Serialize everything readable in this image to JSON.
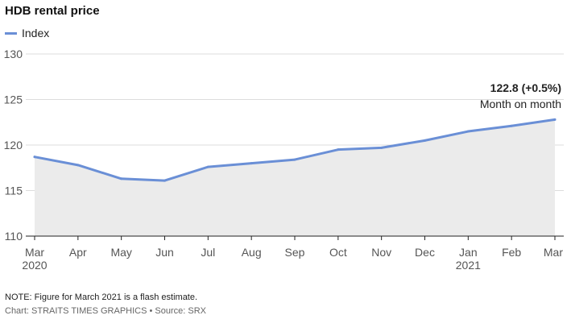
{
  "title": "HDB rental price",
  "legend": {
    "label": "Index"
  },
  "annotation": {
    "value": "122.8 (+0.5%)",
    "text": "Month on month"
  },
  "note": "NOTE: Figure for March 2021 is a flash estimate.",
  "credit": "Chart: STRAITS TIMES GRAPHICS • Source: SRX",
  "colors": {
    "line": "#6a8fd6",
    "area": "#ebebeb",
    "grid": "#dcdcdc",
    "axis": "#222222"
  },
  "chart_data": {
    "type": "area",
    "x": [
      "Mar",
      "Apr",
      "May",
      "Jun",
      "Jul",
      "Aug",
      "Sep",
      "Oct",
      "Nov",
      "Dec",
      "Jan",
      "Feb",
      "Mar"
    ],
    "year_labels": [
      "2020",
      "",
      "",
      "",
      "",
      "",
      "",
      "",
      "",
      "",
      "2021",
      "",
      ""
    ],
    "series": [
      {
        "name": "Index",
        "values": [
          118.7,
          117.8,
          116.3,
          116.1,
          117.6,
          118.0,
          118.4,
          119.5,
          119.7,
          120.5,
          121.5,
          122.1,
          122.8
        ]
      }
    ],
    "yticks": [
      110,
      115,
      120,
      125,
      130
    ],
    "ylim": [
      110,
      130
    ],
    "grid": true
  }
}
